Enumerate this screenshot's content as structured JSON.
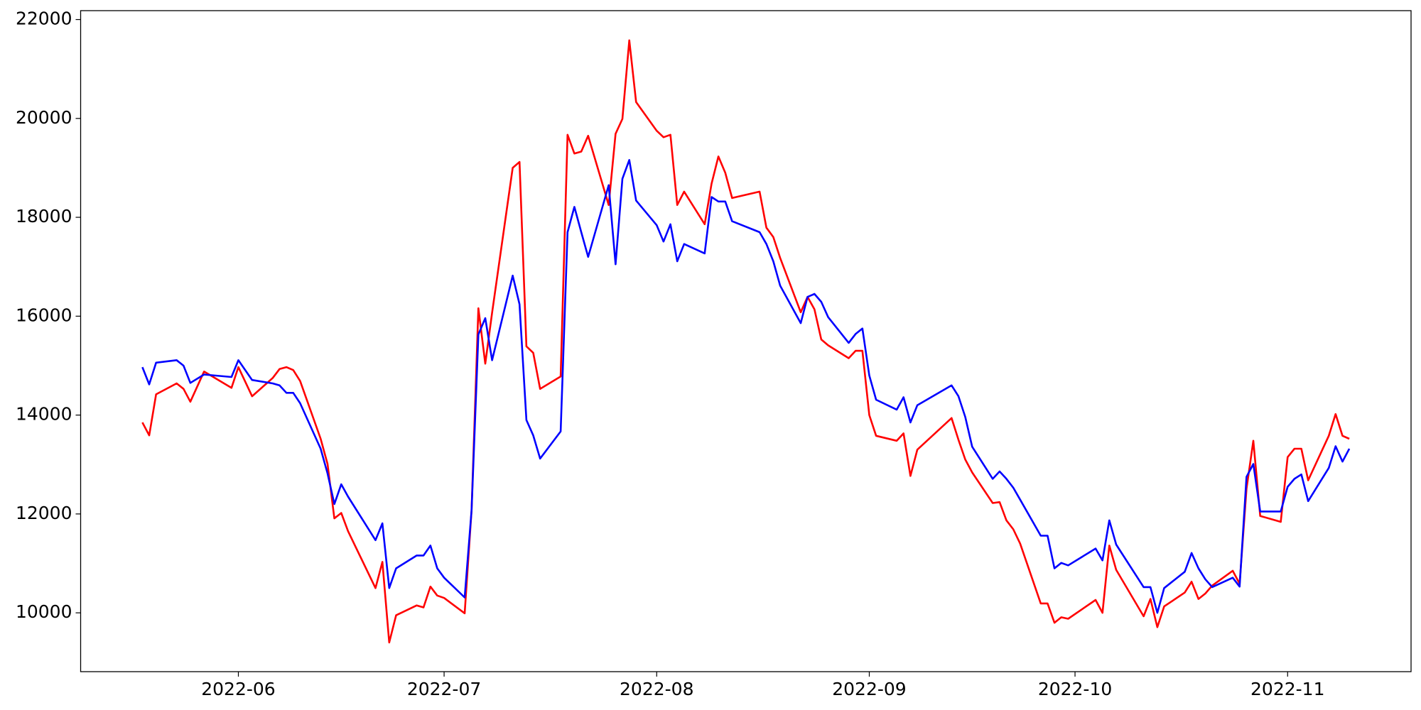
{
  "chart_data": {
    "type": "line",
    "x": [
      "2022-05-18",
      "2022-05-19",
      "2022-05-20",
      "2022-05-23",
      "2022-05-24",
      "2022-05-25",
      "2022-05-27",
      "2022-05-31",
      "2022-06-01",
      "2022-06-03",
      "2022-06-06",
      "2022-06-07",
      "2022-06-08",
      "2022-06-09",
      "2022-06-10",
      "2022-06-13",
      "2022-06-14",
      "2022-06-15",
      "2022-06-16",
      "2022-06-17",
      "2022-06-21",
      "2022-06-22",
      "2022-06-23",
      "2022-06-24",
      "2022-06-27",
      "2022-06-28",
      "2022-06-29",
      "2022-06-30",
      "2022-07-01",
      "2022-07-04",
      "2022-07-05",
      "2022-07-06",
      "2022-07-07",
      "2022-07-08",
      "2022-07-11",
      "2022-07-12",
      "2022-07-13",
      "2022-07-14",
      "2022-07-15",
      "2022-07-18",
      "2022-07-19",
      "2022-07-20",
      "2022-07-21",
      "2022-07-22",
      "2022-07-25",
      "2022-07-26",
      "2022-07-27",
      "2022-07-28",
      "2022-07-29",
      "2022-08-01",
      "2022-08-02",
      "2022-08-03",
      "2022-08-04",
      "2022-08-05",
      "2022-08-08",
      "2022-08-09",
      "2022-08-10",
      "2022-08-11",
      "2022-08-12",
      "2022-08-16",
      "2022-08-17",
      "2022-08-18",
      "2022-08-19",
      "2022-08-22",
      "2022-08-23",
      "2022-08-24",
      "2022-08-25",
      "2022-08-26",
      "2022-08-29",
      "2022-08-30",
      "2022-08-31",
      "2022-09-01",
      "2022-09-02",
      "2022-09-05",
      "2022-09-06",
      "2022-09-07",
      "2022-09-08",
      "2022-09-13",
      "2022-09-14",
      "2022-09-15",
      "2022-09-16",
      "2022-09-19",
      "2022-09-20",
      "2022-09-21",
      "2022-09-22",
      "2022-09-23",
      "2022-09-26",
      "2022-09-27",
      "2022-09-28",
      "2022-09-29",
      "2022-09-30",
      "2022-10-04",
      "2022-10-05",
      "2022-10-06",
      "2022-10-07",
      "2022-10-11",
      "2022-10-12",
      "2022-10-13",
      "2022-10-14",
      "2022-10-17",
      "2022-10-18",
      "2022-10-19",
      "2022-10-20",
      "2022-10-21",
      "2022-10-24",
      "2022-10-25",
      "2022-10-26",
      "2022-10-27",
      "2022-10-28",
      "2022-10-31",
      "2022-11-01",
      "2022-11-02",
      "2022-11-03",
      "2022-11-04",
      "2022-11-07",
      "2022-11-08",
      "2022-11-09",
      "2022-11-10"
    ],
    "series": [
      {
        "color": "#ff0000",
        "values": [
          13850,
          13590,
          14420,
          14640,
          14530,
          14270,
          14880,
          14550,
          14970,
          14380,
          14750,
          14930,
          14970,
          14910,
          14690,
          13520,
          13010,
          11910,
          12020,
          11650,
          10500,
          11030,
          9400,
          9950,
          10150,
          10110,
          10530,
          10350,
          10300,
          9990,
          12070,
          16160,
          15040,
          16070,
          19000,
          19120,
          15390,
          15260,
          14530,
          14780,
          19670,
          19290,
          19330,
          19650,
          18250,
          19690,
          19990,
          21580,
          20330,
          19750,
          19620,
          19670,
          18250,
          18520,
          17860,
          18680,
          19230,
          18900,
          18390,
          18520,
          17790,
          17600,
          17180,
          16080,
          16390,
          16140,
          15530,
          15410,
          15150,
          15300,
          15300,
          14000,
          13580,
          13480,
          13630,
          12770,
          13300,
          13940,
          13500,
          13100,
          12840,
          12220,
          12240,
          11870,
          11690,
          11400,
          10190,
          10190,
          9800,
          9910,
          9880,
          10260,
          10000,
          11360,
          10870,
          9930,
          10280,
          9710,
          10130,
          10410,
          10630,
          10280,
          10390,
          10550,
          10850,
          10590,
          12510,
          13480,
          11960,
          11840,
          13150,
          13320,
          13320,
          12680,
          13580,
          14020,
          13580,
          13520
        ]
      },
      {
        "color": "#0000ff",
        "values": [
          14970,
          14620,
          15060,
          15110,
          15000,
          14650,
          14820,
          14770,
          15110,
          14710,
          14640,
          14600,
          14450,
          14450,
          14240,
          13320,
          12820,
          12200,
          12600,
          12350,
          11470,
          11810,
          10500,
          10900,
          11160,
          11160,
          11360,
          10900,
          10710,
          10310,
          12070,
          15630,
          15960,
          15110,
          16820,
          16240,
          13900,
          13590,
          13120,
          13670,
          17700,
          18210,
          17700,
          17200,
          18650,
          17050,
          18780,
          19160,
          18340,
          17840,
          17510,
          17860,
          17110,
          17460,
          17270,
          18410,
          18320,
          18320,
          17920,
          17700,
          17460,
          17110,
          16620,
          15860,
          16390,
          16450,
          16290,
          15980,
          15460,
          15640,
          15750,
          14800,
          14310,
          14110,
          14360,
          13850,
          14200,
          14600,
          14380,
          13960,
          13360,
          12710,
          12860,
          12710,
          12530,
          12290,
          11560,
          11560,
          10900,
          11010,
          10960,
          11300,
          11060,
          11870,
          11380,
          10520,
          10520,
          10000,
          10500,
          10830,
          11210,
          10900,
          10680,
          10520,
          10710,
          10530,
          12750,
          13010,
          12050,
          12050,
          12550,
          12710,
          12800,
          12260,
          12930,
          13370,
          13060,
          13320
        ]
      }
    ],
    "xlim": [
      "2022-05-09",
      "2022-11-19"
    ],
    "xticks": [
      {
        "value": "2022-06-01",
        "label": "2022-06"
      },
      {
        "value": "2022-07-01",
        "label": "2022-07"
      },
      {
        "value": "2022-08-01",
        "label": "2022-08"
      },
      {
        "value": "2022-09-01",
        "label": "2022-09"
      },
      {
        "value": "2022-10-01",
        "label": "2022-10"
      },
      {
        "value": "2022-11-01",
        "label": "2022-11"
      }
    ],
    "ylim": [
      8810,
      22180
    ],
    "yticks": [
      10000,
      12000,
      14000,
      16000,
      18000,
      20000,
      22000
    ]
  }
}
